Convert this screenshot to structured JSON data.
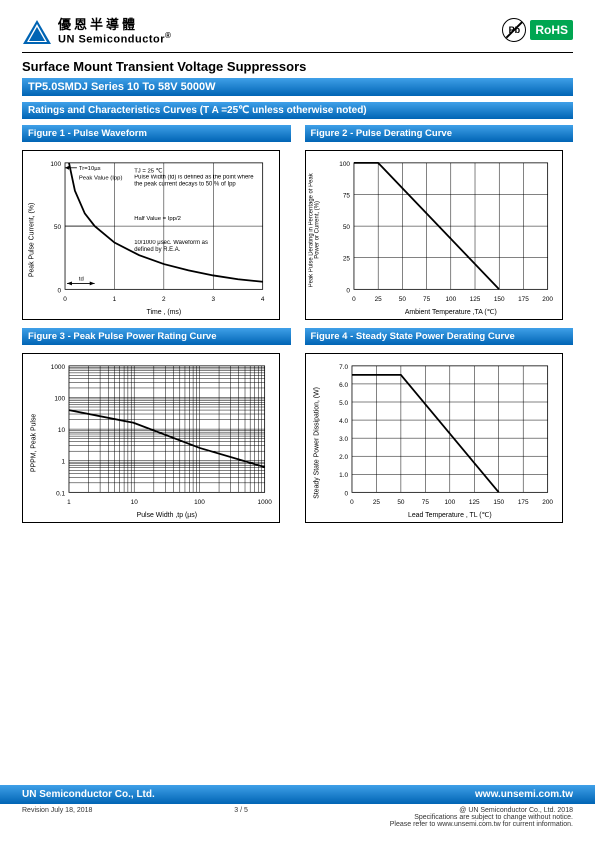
{
  "header": {
    "company_cn": "優恩半導體",
    "company_en": "UN Semiconductor",
    "reg": "®",
    "badge_pb": "Pb",
    "badge_rohs": "RoHS"
  },
  "title_main": "Surface Mount Transient Voltage Suppressors",
  "series_bar": "TP5.0SMDJ Series 10 To 58V 5000W",
  "ratings_bar": "Ratings and Characteristics Curves (T A =25℃ unless otherwise noted)",
  "figures": {
    "f1": {
      "title": "Figure 1 - Pulse Waveform",
      "ylabel": "Peak Pulse Current, (%)",
      "xlabel": "Time , (ms)",
      "x_ticks": [
        "0",
        "1",
        "2",
        "3",
        "4"
      ],
      "y_ticks": [
        "0",
        "50",
        "100"
      ],
      "notes": {
        "tr": "Tr=10µs",
        "peak": "Peak Value (Ipp)",
        "tj": "TJ = 25 ℃",
        "pw": "Pulse Width (td) is defined as the point where the peak current decays to 50 % of Ipp",
        "half": "Half Value = Ipp/2",
        "wave": "10/1000 μsec. Waveform as defined by R.E.A.",
        "td": "td"
      },
      "curve": [
        [
          0.08,
          1.0
        ],
        [
          0.2,
          0.78
        ],
        [
          0.4,
          0.6
        ],
        [
          0.6,
          0.5
        ],
        [
          1.0,
          0.37
        ],
        [
          1.5,
          0.27
        ],
        [
          2.0,
          0.2
        ],
        [
          2.5,
          0.15
        ],
        [
          3.0,
          0.11
        ],
        [
          3.5,
          0.08
        ],
        [
          4.0,
          0.06
        ]
      ],
      "grid_color": "#000",
      "line_width": 1.8
    },
    "f2": {
      "title": "Figure 2 - Pulse Derating Curve",
      "ylabel": "Peak Pulse Derating in Percentage of Peak Power or Current, (%)",
      "xlabel": "Ambient Temperature ,TA  (℃)",
      "x_ticks": [
        "0",
        "25",
        "50",
        "75",
        "100",
        "125",
        "150",
        "175",
        "200"
      ],
      "y_ticks": [
        "0",
        "25",
        "50",
        "75",
        "100"
      ],
      "curve": [
        [
          0,
          100
        ],
        [
          25,
          100
        ],
        [
          150,
          0
        ]
      ],
      "grid_color": "#000",
      "line_width": 1.8
    },
    "f3": {
      "title": "Figure 3 - Peak Pulse Power Rating Curve",
      "ylabel": "PPPM, Peak Pulse",
      "xlabel": "Pulse Width ,tp  (µs)",
      "x_ticks": [
        "1",
        "10",
        "100",
        "1000"
      ],
      "y_ticks": [
        "0.1",
        "1",
        "10",
        "100",
        "1000"
      ],
      "curve": [
        [
          0,
          0.65
        ],
        [
          0.33,
          0.55
        ],
        [
          0.67,
          0.35
        ],
        [
          1.0,
          0.2
        ]
      ],
      "grid_color": "#000",
      "line_width": 1.8
    },
    "f4": {
      "title": "Figure 4 - Steady State Power Derating Curve",
      "ylabel": "Steady State Power Dissipation, (W)",
      "xlabel": "Lead Temperature , TL  (℃)",
      "x_ticks": [
        "0",
        "25",
        "50",
        "75",
        "100",
        "125",
        "150",
        "175",
        "200"
      ],
      "y_ticks": [
        "0",
        "1.0",
        "2.0",
        "3.0",
        "4.0",
        "5.0",
        "6.0",
        "7.0"
      ],
      "curve": [
        [
          0,
          6.5
        ],
        [
          50,
          6.5
        ],
        [
          150,
          0
        ]
      ],
      "grid_color": "#000",
      "line_width": 1.8
    }
  },
  "footer": {
    "company": "UN Semiconductor Co., Ltd.",
    "url": "www.unsemi.com.tw",
    "revision": "Revision July 18, 2018",
    "page": "3 / 5",
    "copyright": "@ UN Semiconductor Co., Ltd.   2018",
    "note1": "Specifications are subject to change without notice.",
    "note2": "Please refer to www.unsemi.com.tw for current information."
  },
  "colors": {
    "blue_grad_top": "#3fa0e8",
    "blue_grad_bot": "#0064b4",
    "black": "#000000",
    "green": "#00a651"
  }
}
